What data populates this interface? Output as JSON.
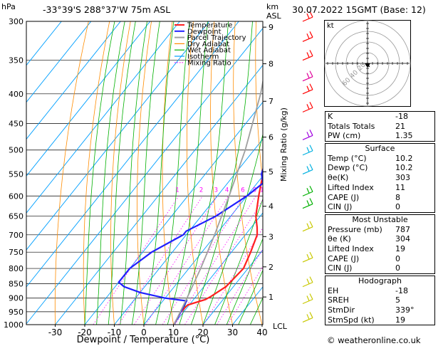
{
  "header": {
    "coord": "-33°39'S 288°37'W 75m ASL",
    "datetime": "30.07.2022 15GMT (Base: 12)",
    "hpa_label": "hPa",
    "km_label": "km",
    "asl_label": "ASL",
    "lcl_label": "LCL"
  },
  "axes": {
    "xlabel": "Dewpoint / Temperature (°C)",
    "mixing_ratio_label": "Mixing Ratio (g/kg)"
  },
  "chart_data": {
    "type": "line",
    "pressure_levels": [
      300,
      350,
      400,
      450,
      500,
      550,
      600,
      650,
      700,
      750,
      800,
      850,
      900,
      950,
      1000
    ],
    "x_ticks": [
      -30,
      -20,
      -10,
      0,
      10,
      20,
      30,
      40
    ],
    "xlim": [
      -35,
      40
    ],
    "ylim": [
      1000,
      300
    ],
    "km_ticks": [
      {
        "km": "1",
        "p": 896
      },
      {
        "km": "2",
        "p": 795
      },
      {
        "km": "3",
        "p": 705
      },
      {
        "km": "4",
        "p": 625
      },
      {
        "km": "5",
        "p": 545
      },
      {
        "km": "6",
        "p": 475
      },
      {
        "km": "7",
        "p": 412
      },
      {
        "km": "8",
        "p": 355
      },
      {
        "km": "9",
        "p": 307
      }
    ],
    "mixing_ratio_lines": [
      "1",
      "2",
      "3",
      "4",
      "6",
      "8",
      "10",
      "15",
      "20",
      "25"
    ],
    "legend": [
      "Temperature",
      "Dewpoint",
      "Parcel Trajectory",
      "Dry Adiabat",
      "Wet Adiabat",
      "Isotherm",
      "Mixing Ratio"
    ],
    "series": [
      {
        "name": "Temperature",
        "points": [
          [
            1000,
            10.2
          ],
          [
            950,
            9
          ],
          [
            925,
            9.5
          ],
          [
            905,
            14
          ],
          [
            895,
            15
          ],
          [
            860,
            17.5
          ],
          [
            800,
            18.5
          ],
          [
            750,
            16.5
          ],
          [
            700,
            14
          ],
          [
            680,
            12
          ],
          [
            650,
            8.5
          ],
          [
            600,
            4
          ],
          [
            550,
            -0.5
          ],
          [
            500,
            -5
          ],
          [
            450,
            -11
          ],
          [
            400,
            -17.5
          ],
          [
            350,
            -25.5
          ],
          [
            325,
            -26
          ],
          [
            305,
            -25.5
          ],
          [
            300,
            -25
          ]
        ]
      },
      {
        "name": "Dewpoint",
        "points": [
          [
            1000,
            10.2
          ],
          [
            950,
            9
          ],
          [
            910,
            8
          ],
          [
            900,
            0
          ],
          [
            880,
            -10
          ],
          [
            860,
            -17
          ],
          [
            845,
            -20
          ],
          [
            800,
            -20
          ],
          [
            750,
            -17
          ],
          [
            700,
            -11
          ],
          [
            690,
            -11
          ],
          [
            650,
            -5
          ],
          [
            600,
            0
          ],
          [
            570,
            2
          ],
          [
            550,
            -1
          ],
          [
            500,
            -5
          ],
          [
            450,
            -10
          ],
          [
            410,
            -16
          ],
          [
            400,
            -20
          ],
          [
            365,
            -23
          ],
          [
            340,
            -22
          ],
          [
            330,
            -20
          ],
          [
            300,
            -28
          ]
        ]
      },
      {
        "name": "Parcel Trajectory",
        "points": [
          [
            1000,
            10.2
          ],
          [
            900,
            7.4
          ],
          [
            800,
            4
          ],
          [
            700,
            -0.4
          ],
          [
            600,
            -6
          ],
          [
            500,
            -13
          ],
          [
            400,
            -23
          ],
          [
            300,
            -38
          ]
        ]
      }
    ]
  },
  "hodograph": {
    "unit_label": "kt",
    "ring_labels": [
      "20",
      "40",
      "60"
    ]
  },
  "indices": {
    "rows": [
      {
        "label": "K",
        "value": "-18"
      },
      {
        "label": "Totals Totals",
        "value": "21"
      },
      {
        "label": "PW (cm)",
        "value": "1.35"
      }
    ]
  },
  "surface": {
    "title": "Surface",
    "rows": [
      {
        "label": "Temp (°C)",
        "value": "10.2"
      },
      {
        "label": "Dewp (°C)",
        "value": "10.2"
      },
      {
        "label": "θe(K)",
        "value": "303"
      },
      {
        "label": "Lifted Index",
        "value": "11"
      },
      {
        "label": "CAPE (J)",
        "value": "8"
      },
      {
        "label": "CIN (J)",
        "value": "0"
      }
    ]
  },
  "most_unstable": {
    "title": "Most Unstable",
    "rows": [
      {
        "label": "Pressure (mb)",
        "value": "787"
      },
      {
        "label": "θe (K)",
        "value": "304"
      },
      {
        "label": "Lifted Index",
        "value": "19"
      },
      {
        "label": "CAPE (J)",
        "value": "0"
      },
      {
        "label": "CIN (J)",
        "value": "0"
      }
    ]
  },
  "hodograph_box": {
    "title": "Hodograph",
    "rows": [
      {
        "label": "EH",
        "value": "-18"
      },
      {
        "label": "SREH",
        "value": "5"
      },
      {
        "label": "StmDir",
        "value": "339°"
      },
      {
        "label": "StmSpd (kt)",
        "value": "19"
      }
    ]
  },
  "footer": {
    "copyright": "© weatheronline.co.uk"
  },
  "colors": {
    "temperature": "#ff2020",
    "dewpoint": "#2020ff",
    "parcel": "#a0a0a0",
    "dry_adiabat": "#ff8c00",
    "wet_adiabat": "#00b000",
    "isotherm": "#00a0ff",
    "mixing_ratio": "#ff00ff"
  }
}
